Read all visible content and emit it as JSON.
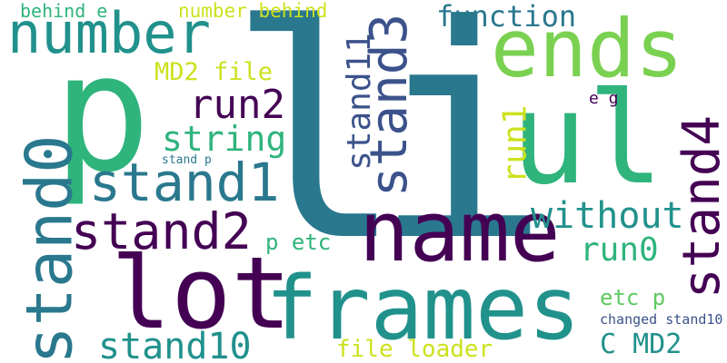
{
  "words": [
    {
      "text": "l",
      "color": "#2a788e"
    },
    {
      "text": "i",
      "color": "#2a788e"
    },
    {
      "text": "p",
      "color": "#2fb47c"
    },
    {
      "text": "ul",
      "color": "#2fb47c"
    },
    {
      "text": "ends",
      "color": "#7ad151"
    },
    {
      "text": "name",
      "color": "#440154"
    },
    {
      "text": "frames",
      "color": "#21918c"
    },
    {
      "text": "lot",
      "color": "#440154"
    },
    {
      "text": "number",
      "color": "#21918c"
    },
    {
      "text": "stand0",
      "color": "#2a788e"
    },
    {
      "text": "stand1",
      "color": "#2a788e"
    },
    {
      "text": "stand2",
      "color": "#440154"
    },
    {
      "text": "stand3",
      "color": "#3b528b"
    },
    {
      "text": "stand4",
      "color": "#440154"
    },
    {
      "text": "stand10",
      "color": "#21918c"
    },
    {
      "text": "stand11",
      "color": "#3b528b"
    },
    {
      "text": "function",
      "color": "#2a788e"
    },
    {
      "text": "run2",
      "color": "#440154"
    },
    {
      "text": "run1",
      "color": "#cde11d"
    },
    {
      "text": "run0",
      "color": "#2fb47c"
    },
    {
      "text": "without",
      "color": "#21918c"
    },
    {
      "text": "string",
      "color": "#2fb47c"
    },
    {
      "text": "MD2 file",
      "color": "#cde11d"
    },
    {
      "text": "C MD2",
      "color": "#21918c"
    },
    {
      "text": "file loader",
      "color": "#cde11d"
    },
    {
      "text": "p etc",
      "color": "#2fb47c"
    },
    {
      "text": "etc p",
      "color": "#5ec962"
    },
    {
      "text": "behind e",
      "color": "#2fb47c"
    },
    {
      "text": "number behind",
      "color": "#cde11d"
    },
    {
      "text": "e g",
      "color": "#440154"
    },
    {
      "text": "stand p",
      "color": "#2a788e"
    },
    {
      "text": "changed stand10",
      "color": "#3b528b"
    }
  ]
}
